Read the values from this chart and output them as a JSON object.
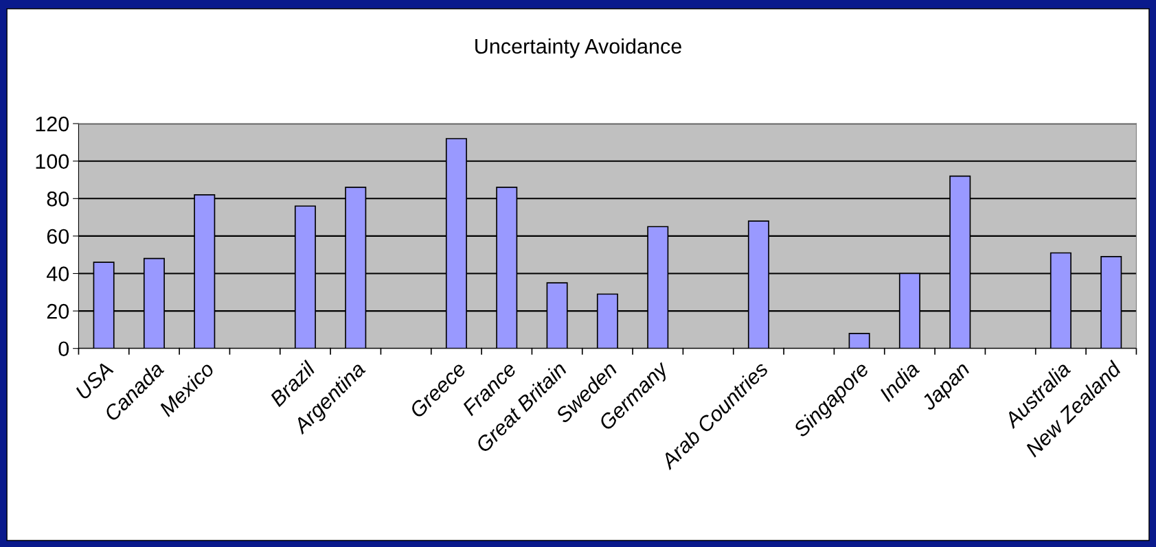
{
  "chart_data": {
    "type": "bar",
    "title": "Uncertainty Avoidance",
    "categories": [
      "USA",
      "Canada",
      "Mexico",
      null,
      "Brazil",
      "Argentina",
      null,
      "Greece",
      "France",
      "Great Britain",
      "Sweden",
      "Germany",
      null,
      "Arab Countries",
      null,
      "Singapore",
      "India",
      "Japan",
      null,
      "Australia",
      "New Zealand"
    ],
    "values": [
      46,
      48,
      82,
      null,
      76,
      86,
      null,
      112,
      86,
      35,
      29,
      65,
      null,
      68,
      null,
      8,
      40,
      92,
      null,
      51,
      49
    ],
    "color": "#9999ff",
    "ylim": [
      0,
      120
    ],
    "yticks": [
      0,
      20,
      40,
      60,
      80,
      100,
      120
    ],
    "grid": "y"
  }
}
